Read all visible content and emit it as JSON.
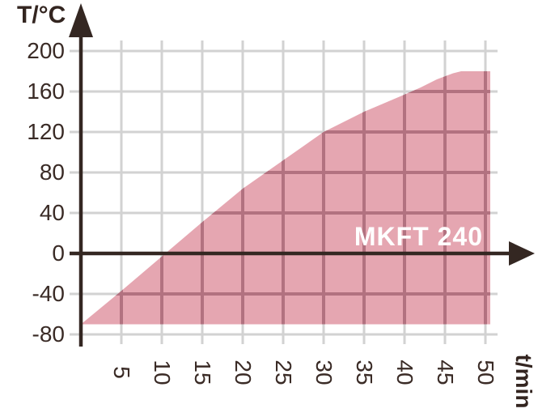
{
  "page": {
    "background": "#ffffff"
  },
  "chart_data": {
    "type": "area",
    "title": "",
    "ylabel": "T/°C",
    "xlabel": "t/min",
    "series": [
      {
        "name": "MKFT 240",
        "points": [
          [
            0,
            -70
          ],
          [
            5,
            -37
          ],
          [
            10,
            -3
          ],
          [
            15,
            31
          ],
          [
            20,
            64
          ],
          [
            25,
            92
          ],
          [
            30,
            120
          ],
          [
            35,
            140
          ],
          [
            40,
            157
          ],
          [
            42,
            164
          ],
          [
            44,
            172
          ],
          [
            46,
            178
          ],
          [
            47,
            180
          ],
          [
            50,
            180
          ]
        ],
        "baseline": -70
      }
    ],
    "x_ticks": [
      5,
      10,
      15,
      20,
      25,
      30,
      35,
      40,
      45,
      50
    ],
    "y_ticks": [
      200,
      160,
      120,
      80,
      40,
      0,
      -40,
      -80
    ],
    "xlim": [
      0,
      50
    ],
    "ylim": [
      -80,
      200
    ],
    "grid": true,
    "legend_position": "inside-right-above-x-axis",
    "colors": {
      "area_fill": "#e5a6b1",
      "grid_line": "#d2d2d2",
      "grid_line_in_area": "#b27280",
      "axis": "#342722",
      "tick_text": "#3a2b26",
      "series_label_text": "#ffffff"
    }
  }
}
